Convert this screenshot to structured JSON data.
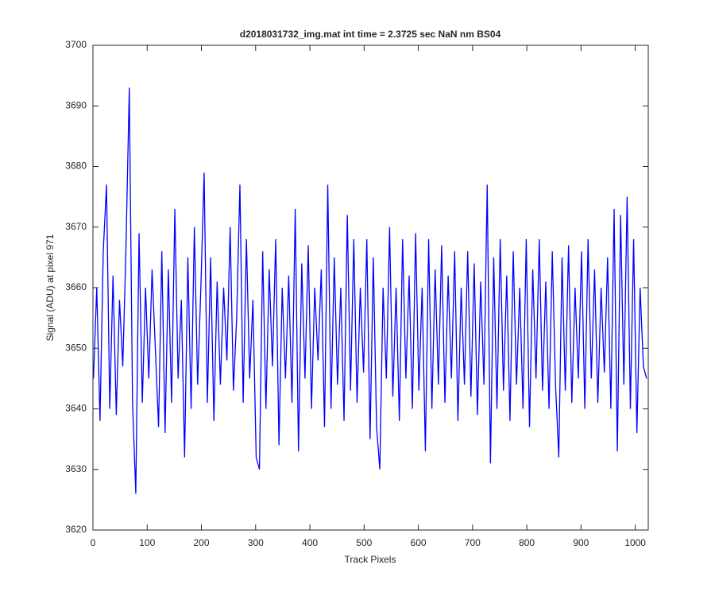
{
  "chart_data": {
    "type": "line",
    "title": "d2018031732_img.mat int time = 2.3725 sec  NaN nm BS04",
    "x_label": "Track Pixels",
    "y_label": "Signal (ADU) at pixel 971",
    "color": "#0000ff",
    "xlim": [
      0,
      1024
    ],
    "ylim": [
      3620,
      3700
    ],
    "xticks": [
      0,
      100,
      200,
      300,
      400,
      500,
      600,
      700,
      800,
      900,
      1000
    ],
    "yticks": [
      3620,
      3630,
      3640,
      3650,
      3660,
      3670,
      3680,
      3690,
      3700
    ],
    "x": [
      1,
      7,
      13,
      19,
      25,
      31,
      37,
      43,
      49,
      55,
      61,
      67,
      73,
      79,
      85,
      91,
      97,
      103,
      109,
      115,
      121,
      127,
      133,
      139,
      145,
      151,
      157,
      163,
      169,
      175,
      181,
      187,
      193,
      199,
      205,
      211,
      217,
      223,
      229,
      235,
      241,
      247,
      253,
      259,
      265,
      271,
      277,
      283,
      289,
      295,
      301,
      307,
      313,
      319,
      325,
      331,
      337,
      343,
      349,
      355,
      361,
      367,
      373,
      379,
      385,
      391,
      397,
      403,
      409,
      415,
      421,
      427,
      433,
      439,
      445,
      451,
      457,
      463,
      469,
      475,
      481,
      487,
      493,
      499,
      505,
      511,
      517,
      523,
      529,
      535,
      541,
      547,
      553,
      559,
      565,
      571,
      577,
      583,
      589,
      595,
      601,
      607,
      613,
      619,
      625,
      631,
      637,
      643,
      649,
      655,
      661,
      667,
      673,
      679,
      685,
      691,
      697,
      703,
      709,
      715,
      721,
      727,
      733,
      739,
      745,
      751,
      757,
      763,
      769,
      775,
      781,
      787,
      793,
      799,
      805,
      811,
      817,
      823,
      829,
      835,
      841,
      847,
      853,
      859,
      865,
      871,
      877,
      883,
      889,
      895,
      901,
      907,
      913,
      919,
      925,
      931,
      937,
      943,
      949,
      955,
      961,
      967,
      973,
      979,
      985,
      991,
      997,
      1003,
      1009,
      1015,
      1021
    ],
    "values": [
      3645,
      3660,
      3638,
      3666,
      3677,
      3640,
      3662,
      3639,
      3658,
      3647,
      3667,
      3693,
      3641,
      3626,
      3669,
      3641,
      3660,
      3645,
      3663,
      3650,
      3637,
      3666,
      3636,
      3663,
      3641,
      3673,
      3645,
      3658,
      3632,
      3665,
      3640,
      3670,
      3644,
      3660,
      3679,
      3641,
      3665,
      3638,
      3661,
      3644,
      3660,
      3648,
      3670,
      3643,
      3655,
      3677,
      3641,
      3668,
      3645,
      3658,
      3632,
      3630,
      3666,
      3640,
      3663,
      3647,
      3668,
      3634,
      3660,
      3645,
      3662,
      3641,
      3673,
      3633,
      3664,
      3645,
      3667,
      3640,
      3660,
      3648,
      3663,
      3637,
      3677,
      3640,
      3665,
      3644,
      3660,
      3638,
      3672,
      3643,
      3668,
      3641,
      3660,
      3646,
      3668,
      3635,
      3665,
      3637,
      3630,
      3660,
      3645,
      3670,
      3642,
      3660,
      3638,
      3668,
      3645,
      3662,
      3640,
      3669,
      3643,
      3660,
      3633,
      3668,
      3640,
      3663,
      3644,
      3667,
      3641,
      3662,
      3645,
      3666,
      3638,
      3660,
      3644,
      3666,
      3642,
      3664,
      3639,
      3661,
      3644,
      3677,
      3631,
      3665,
      3640,
      3668,
      3643,
      3662,
      3638,
      3666,
      3644,
      3660,
      3640,
      3668,
      3637,
      3663,
      3645,
      3668,
      3643,
      3661,
      3640,
      3666,
      3644,
      3632,
      3665,
      3643,
      3667,
      3641,
      3660,
      3645,
      3666,
      3640,
      3668,
      3645,
      3663,
      3641,
      3660,
      3646,
      3665,
      3640,
      3673,
      3633,
      3672,
      3644,
      3675,
      3640,
      3668,
      3636,
      3660,
      3647,
      3645
    ]
  }
}
